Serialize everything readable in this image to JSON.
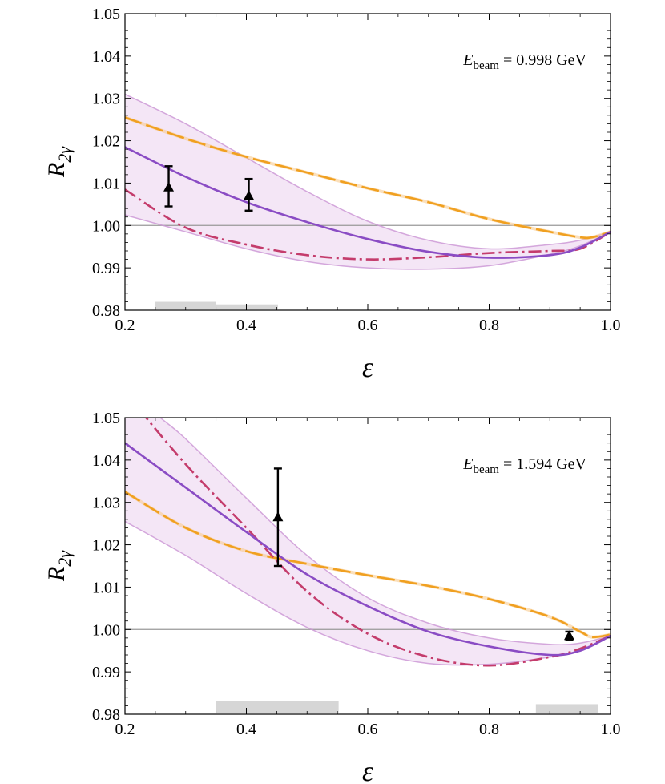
{
  "chart_data": [
    {
      "type": "line",
      "panel": "top",
      "annotation": {
        "prefix": "E",
        "subscript": "beam",
        "text": " = 0.998 GeV"
      },
      "xlabel": "ε",
      "ylabel": {
        "main": "R",
        "sub": "2γ"
      },
      "xlim": [
        0.2,
        1.0
      ],
      "ylim": [
        0.98,
        1.05
      ],
      "xticks": [
        "0.2",
        "0.4",
        "0.6",
        "0.8",
        "1.0"
      ],
      "yticks": [
        "0.98",
        "0.99",
        "1.00",
        "1.01",
        "1.02",
        "1.03",
        "1.04",
        "1.05"
      ],
      "reference_line": 1.0,
      "series": [
        {
          "name": "band-upper",
          "style": "band",
          "color": "#cc99d6",
          "x": [
            0.2,
            0.3,
            0.4,
            0.5,
            0.6,
            0.7,
            0.8,
            0.9,
            0.95,
            1.0
          ],
          "y": [
            1.031,
            1.024,
            1.016,
            1.008,
            1.001,
            0.9965,
            0.9945,
            0.9955,
            0.9965,
            0.9985
          ]
        },
        {
          "name": "band-lower",
          "style": "band",
          "color": "#cc99d6",
          "x": [
            0.2,
            0.3,
            0.4,
            0.5,
            0.6,
            0.7,
            0.8,
            0.9,
            0.95,
            1.0
          ],
          "y": [
            1.0025,
            0.9985,
            0.9945,
            0.9915,
            0.99,
            0.9897,
            0.9905,
            0.9932,
            0.9952,
            0.9985
          ]
        },
        {
          "name": "solid",
          "style": "solid",
          "color": "#8a4cc4",
          "x": [
            0.2,
            0.3,
            0.4,
            0.5,
            0.6,
            0.7,
            0.8,
            0.9,
            0.95,
            1.0
          ],
          "y": [
            1.0185,
            1.0115,
            1.0055,
            1.0008,
            0.9968,
            0.9938,
            0.9924,
            0.993,
            0.9948,
            0.9985
          ]
        },
        {
          "name": "dash-dot",
          "style": "dashdot",
          "color": "#c43c6c",
          "x": [
            0.2,
            0.3,
            0.4,
            0.5,
            0.6,
            0.7,
            0.8,
            0.9,
            0.95,
            1.0
          ],
          "y": [
            1.0085,
            0.9995,
            0.9955,
            0.993,
            0.992,
            0.9925,
            0.9935,
            0.994,
            0.9945,
            0.9985
          ]
        },
        {
          "name": "long-dash",
          "style": "longdash",
          "color": "#f0a020",
          "x": [
            0.2,
            0.3,
            0.4,
            0.5,
            0.6,
            0.7,
            0.8,
            0.9,
            0.95,
            0.97,
            1.0
          ],
          "y": [
            1.0255,
            1.0205,
            1.0162,
            1.0125,
            1.0088,
            1.0055,
            1.0015,
            0.9985,
            0.9972,
            0.9972,
            0.9985
          ]
        }
      ],
      "data_points": [
        {
          "x": 0.272,
          "y": 1.009,
          "err_low": 0.0045,
          "err_high": 0.005
        },
        {
          "x": 0.404,
          "y": 1.007,
          "err_low": 0.0035,
          "err_high": 0.004
        }
      ],
      "systematic_bars": [
        {
          "x0": 0.25,
          "x1": 0.35,
          "height": 0.0016
        },
        {
          "x0": 0.35,
          "x1": 0.452,
          "height": 0.001
        }
      ]
    },
    {
      "type": "line",
      "panel": "bottom",
      "annotation": {
        "prefix": "E",
        "subscript": "beam",
        "text": " = 1.594 GeV"
      },
      "xlabel": "ε",
      "ylabel": {
        "main": "R",
        "sub": "2γ"
      },
      "xlim": [
        0.2,
        1.0
      ],
      "ylim": [
        0.98,
        1.05
      ],
      "xticks": [
        "0.2",
        "0.4",
        "0.6",
        "0.8",
        "1.0"
      ],
      "yticks": [
        "0.98",
        "0.99",
        "1.00",
        "1.01",
        "1.02",
        "1.03",
        "1.04",
        "1.05"
      ],
      "reference_line": 1.0,
      "series": [
        {
          "name": "band-upper",
          "style": "band",
          "color": "#cc99d6",
          "x": [
            0.2,
            0.25,
            0.3,
            0.4,
            0.5,
            0.6,
            0.7,
            0.8,
            0.9,
            0.95,
            1.0
          ],
          "y": [
            1.058,
            1.051,
            1.045,
            1.031,
            1.0175,
            1.0075,
            1.0015,
            0.998,
            0.9965,
            0.9968,
            0.9985
          ]
        },
        {
          "name": "band-lower",
          "style": "band",
          "color": "#cc99d6",
          "x": [
            0.2,
            0.3,
            0.4,
            0.5,
            0.6,
            0.7,
            0.8,
            0.9,
            0.95,
            1.0
          ],
          "y": [
            1.0255,
            1.0175,
            1.0085,
            1.0005,
            0.995,
            0.992,
            0.9918,
            0.9935,
            0.9952,
            0.9985
          ]
        },
        {
          "name": "solid",
          "style": "solid",
          "color": "#8a4cc4",
          "x": [
            0.2,
            0.3,
            0.4,
            0.5,
            0.6,
            0.7,
            0.8,
            0.9,
            0.95,
            1.0
          ],
          "y": [
            1.044,
            1.0335,
            1.023,
            1.013,
            1.0055,
            0.9995,
            0.996,
            0.994,
            0.995,
            0.9985
          ]
        },
        {
          "name": "dash-dot",
          "style": "dashdot",
          "color": "#c43c6c",
          "x": [
            0.2,
            0.3,
            0.4,
            0.5,
            0.6,
            0.7,
            0.8,
            0.9,
            0.95,
            1.0
          ],
          "y": [
            1.056,
            1.039,
            1.024,
            1.009,
            0.999,
            0.9935,
            0.9915,
            0.9935,
            0.9955,
            0.9985
          ]
        },
        {
          "name": "long-dash",
          "style": "longdash",
          "color": "#f0a020",
          "x": [
            0.2,
            0.3,
            0.4,
            0.5,
            0.6,
            0.7,
            0.8,
            0.9,
            0.95,
            0.97,
            1.0
          ],
          "y": [
            1.0325,
            1.024,
            1.0185,
            1.0155,
            1.0128,
            1.0103,
            1.0072,
            1.003,
            0.9995,
            0.9982,
            0.9988
          ]
        }
      ],
      "data_points": [
        {
          "x": 0.452,
          "y": 1.0265,
          "err_low": 0.0115,
          "err_high": 0.0115
        },
        {
          "x": 0.932,
          "y": 0.9985,
          "err_low": 0.001,
          "err_high": 0.001
        }
      ],
      "systematic_bars": [
        {
          "x0": 0.35,
          "x1": 0.552,
          "height": 0.0028
        },
        {
          "x0": 0.877,
          "x1": 0.98,
          "height": 0.002
        }
      ]
    }
  ]
}
